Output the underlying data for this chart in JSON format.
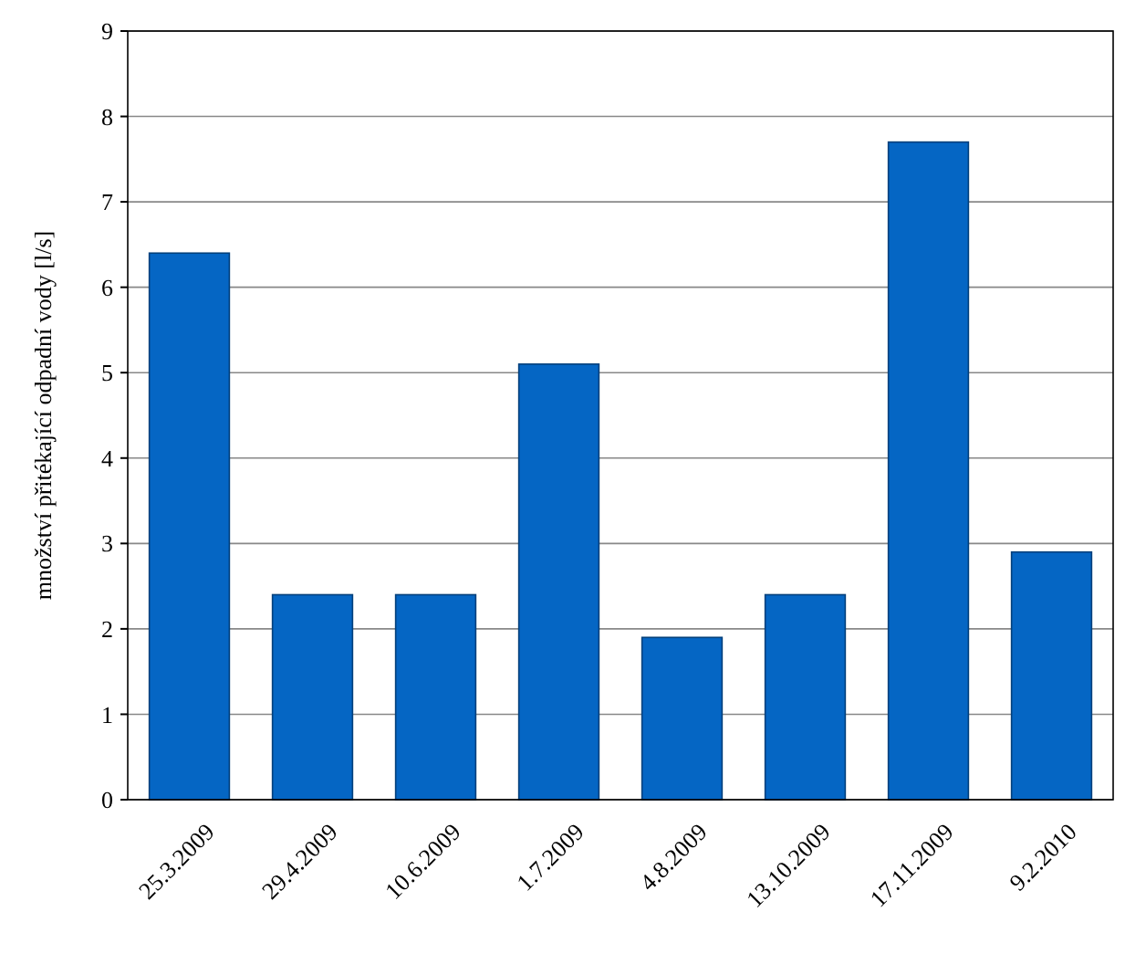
{
  "chart_data": {
    "type": "bar",
    "ylabel": "množství přitékající odpadní vody [l/s]",
    "categories": [
      "25.3.2009",
      "29.4.2009",
      "10.6.2009",
      "1.7.2009",
      "4.8.2009",
      "13.10.2009",
      "17.11.2009",
      "9.2.2010"
    ],
    "values": [
      6.4,
      2.4,
      2.4,
      5.1,
      1.9,
      2.4,
      7.7,
      2.9
    ],
    "color": "#0566c4",
    "ylim": [
      0,
      9
    ],
    "yticks": [
      0,
      1,
      2,
      3,
      4,
      5,
      6,
      7,
      8,
      9
    ],
    "grid": "y"
  }
}
